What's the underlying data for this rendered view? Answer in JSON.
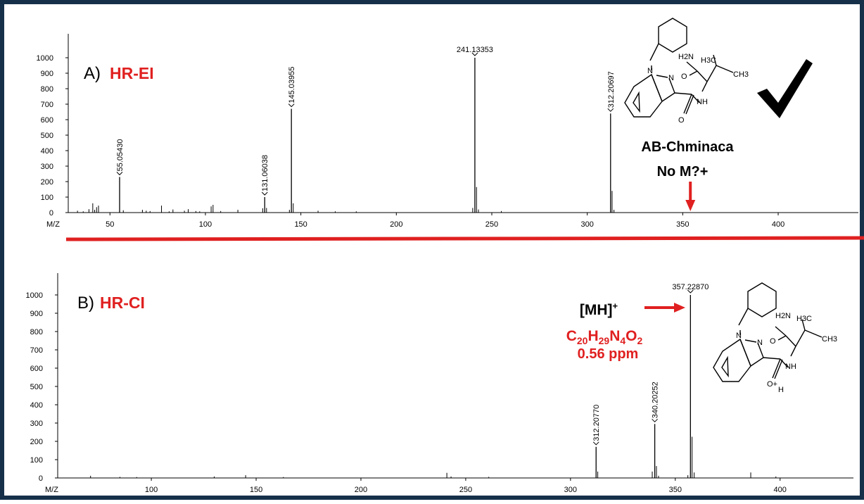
{
  "colors": {
    "border": "#16304a",
    "accent": "#e02020",
    "ink": "#000000",
    "grey": "#555555"
  },
  "divider": {
    "color": "#e02020"
  },
  "chart_data": [
    {
      "type": "bar",
      "panel_letter": "A)",
      "panel_title": "HR-EI",
      "xlabel": "M/Z",
      "ylabel": "",
      "xlim": [
        30,
        442
      ],
      "ylim": [
        0,
        1000
      ],
      "x_ticks": [
        50,
        100,
        150,
        200,
        250,
        300,
        350,
        400
      ],
      "y_ticks": [
        0,
        100,
        200,
        300,
        400,
        500,
        600,
        700,
        800,
        900,
        1000
      ],
      "grid": false,
      "labeled_peaks": [
        {
          "mz": 55.0543,
          "intensity": 230,
          "label": "55.05430"
        },
        {
          "mz": 131.06038,
          "intensity": 100,
          "label": "131.06038"
        },
        {
          "mz": 145.03955,
          "intensity": 670,
          "label": "145.03955"
        },
        {
          "mz": 241.13353,
          "intensity": 1000,
          "label": "241.13353"
        },
        {
          "mz": 312.20697,
          "intensity": 640,
          "label": "312.20697"
        }
      ],
      "minor_peaks": [
        [
          33,
          12
        ],
        [
          36,
          8
        ],
        [
          39,
          22
        ],
        [
          41,
          60
        ],
        [
          42,
          18
        ],
        [
          43,
          35
        ],
        [
          44,
          45
        ],
        [
          57,
          15
        ],
        [
          67,
          18
        ],
        [
          69,
          12
        ],
        [
          71,
          10
        ],
        [
          77,
          45
        ],
        [
          81,
          8
        ],
        [
          83,
          20
        ],
        [
          89,
          12
        ],
        [
          91,
          22
        ],
        [
          95,
          10
        ],
        [
          97,
          8
        ],
        [
          103,
          40
        ],
        [
          104,
          50
        ],
        [
          108,
          10
        ],
        [
          117,
          18
        ],
        [
          130,
          28
        ],
        [
          132,
          30
        ],
        [
          144,
          18
        ],
        [
          146,
          60
        ],
        [
          159,
          12
        ],
        [
          168,
          8
        ],
        [
          179,
          8
        ],
        [
          240,
          30
        ],
        [
          242,
          165
        ],
        [
          243,
          20
        ],
        [
          255,
          10
        ],
        [
          313,
          140
        ],
        [
          314,
          18
        ]
      ],
      "annotations": {
        "compound_name": "AB-Chminaca",
        "note": "No M?+",
        "arrow_mz": 354
      },
      "structure": {
        "labels": [
          "N",
          "N",
          "H2N",
          "O",
          "H3C",
          "CH3",
          "NH",
          "O"
        ]
      }
    },
    {
      "type": "bar",
      "panel_letter": "B)",
      "panel_title": "HR-CI",
      "xlabel": "M/Z",
      "ylabel": "",
      "xlim": [
        57,
        435
      ],
      "ylim": [
        0,
        1000
      ],
      "x_ticks": [
        100,
        150,
        200,
        250,
        300,
        350,
        400
      ],
      "y_ticks": [
        0,
        100,
        200,
        300,
        400,
        500,
        600,
        700,
        800,
        900,
        1000
      ],
      "grid": false,
      "labeled_peaks": [
        {
          "mz": 312.2077,
          "intensity": 170,
          "label": "312.20770"
        },
        {
          "mz": 340.20252,
          "intensity": 295,
          "label": "340.20252"
        },
        {
          "mz": 357.2287,
          "intensity": 1000,
          "label": "357.22870"
        }
      ],
      "minor_peaks": [
        [
          71,
          12
        ],
        [
          85,
          6
        ],
        [
          93,
          5
        ],
        [
          130,
          8
        ],
        [
          145,
          15
        ],
        [
          163,
          5
        ],
        [
          241,
          28
        ],
        [
          243,
          8
        ],
        [
          261,
          6
        ],
        [
          313,
          35
        ],
        [
          339,
          35
        ],
        [
          341,
          65
        ],
        [
          342,
          12
        ],
        [
          356,
          15
        ],
        [
          358,
          225
        ],
        [
          359,
          30
        ],
        [
          386,
          30
        ],
        [
          398,
          8
        ]
      ],
      "annotations": {
        "ion": "[MH]",
        "ion_sup": "+",
        "formula": [
          {
            "t": "C",
            "sub": "20"
          },
          {
            "t": "H",
            "sub": "29"
          },
          {
            "t": "N",
            "sub": "4"
          },
          {
            "t": "O",
            "sub": "2"
          }
        ],
        "error": "0.56 ppm"
      },
      "structure": {
        "labels": [
          "N",
          "N",
          "H2N",
          "O",
          "H3C",
          "CH3",
          "NH",
          "O+",
          "H"
        ]
      }
    }
  ]
}
